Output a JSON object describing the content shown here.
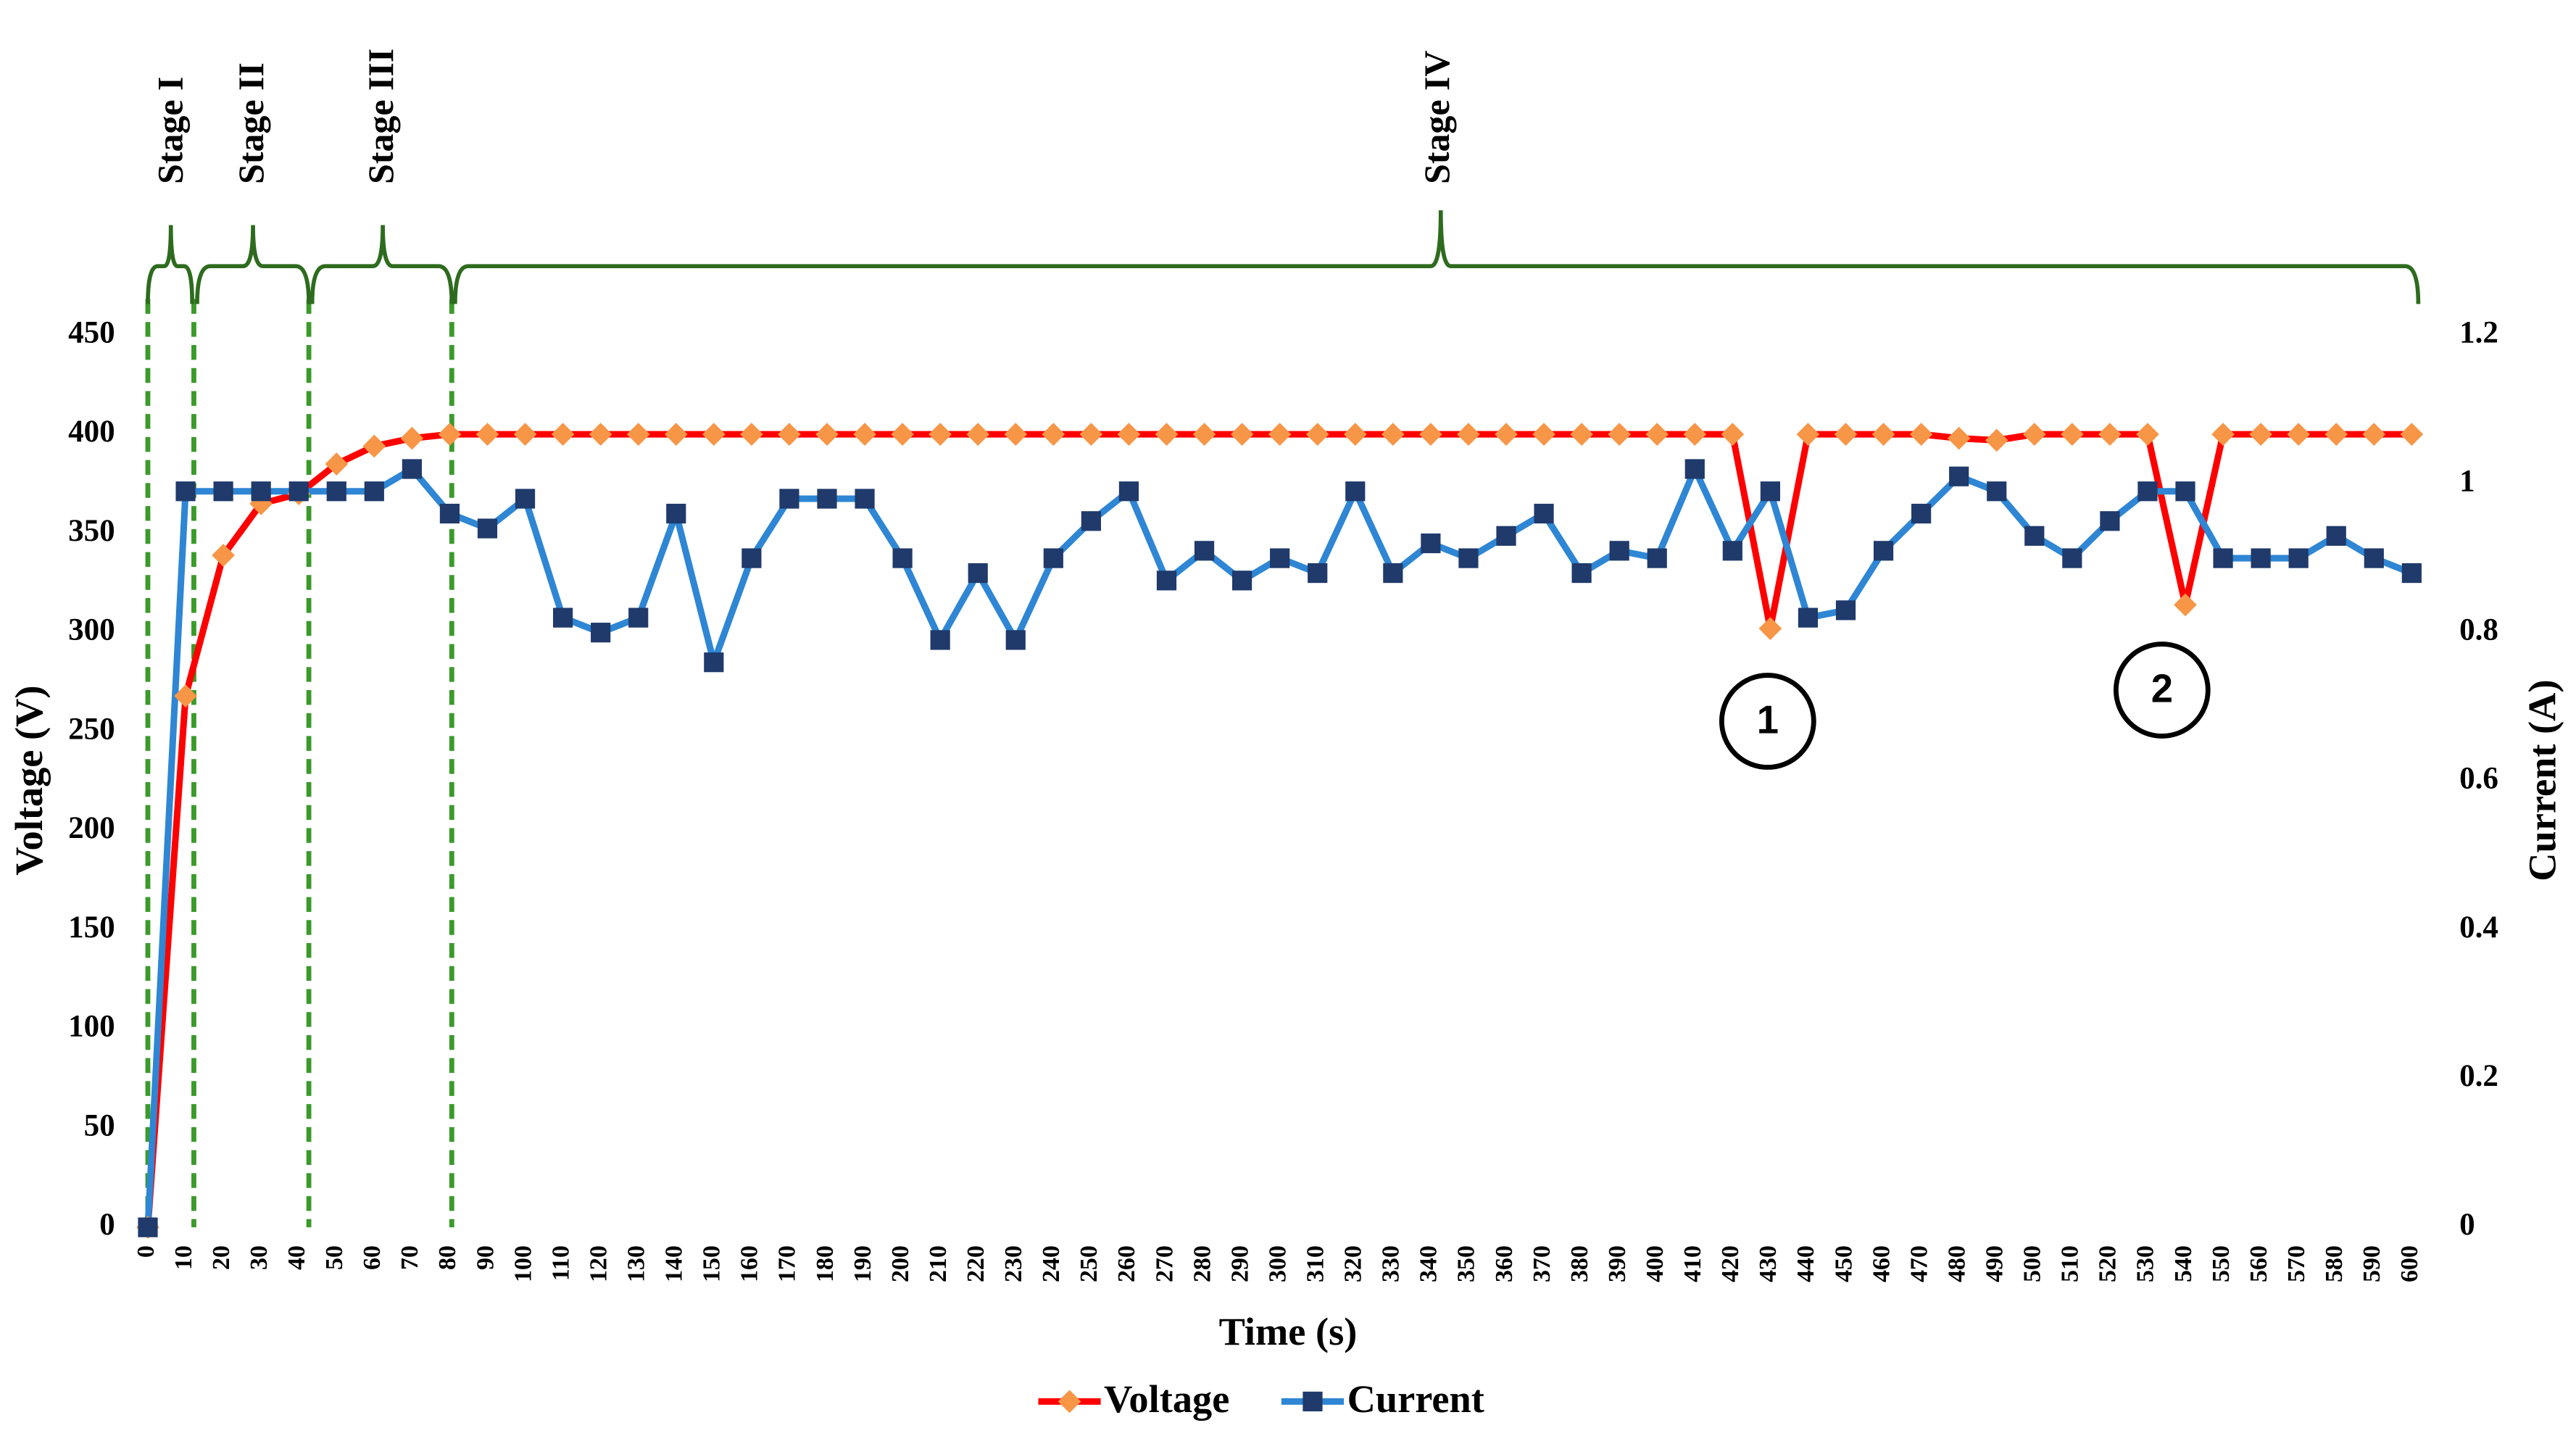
{
  "chart_data": {
    "type": "line",
    "xlabel": "Time (s)",
    "ylabel": "Voltage (V)",
    "y2label": "Current  (A)",
    "x": [
      0,
      10,
      20,
      30,
      40,
      50,
      60,
      70,
      80,
      90,
      100,
      110,
      120,
      130,
      140,
      150,
      160,
      170,
      180,
      190,
      200,
      210,
      220,
      230,
      240,
      250,
      260,
      270,
      280,
      290,
      300,
      310,
      320,
      330,
      340,
      350,
      360,
      370,
      380,
      390,
      400,
      410,
      420,
      430,
      440,
      450,
      460,
      470,
      480,
      490,
      500,
      510,
      520,
      530,
      540,
      550,
      560,
      570,
      580,
      590,
      600
    ],
    "series": [
      {
        "name": "Voltage",
        "color": "#ff0000",
        "marker_color": "#f79646",
        "marker": "diamond",
        "values": [
          0,
          268,
          339,
          365,
          370,
          385,
          394,
          398,
          400,
          400,
          400,
          400,
          400,
          400,
          400,
          400,
          400,
          400,
          400,
          400,
          400,
          400,
          400,
          400,
          400,
          400,
          400,
          400,
          400,
          400,
          400,
          400,
          400,
          400,
          400,
          400,
          400,
          400,
          400,
          400,
          400,
          400,
          400,
          302,
          400,
          400,
          400,
          400,
          398,
          397,
          400,
          400,
          400,
          400,
          314,
          400,
          400,
          400,
          400,
          400,
          400
        ]
      },
      {
        "name": "Current",
        "color": "#2e86d4",
        "marker_color": "#1f3a6b",
        "marker": "square",
        "axis": "y2",
        "values": [
          0,
          0.99,
          0.99,
          0.99,
          0.99,
          0.99,
          0.99,
          1.02,
          0.96,
          0.94,
          0.98,
          0.82,
          0.8,
          0.82,
          0.96,
          0.76,
          0.9,
          0.98,
          0.98,
          0.98,
          0.9,
          0.79,
          0.88,
          0.79,
          0.9,
          0.95,
          0.99,
          0.87,
          0.91,
          0.87,
          0.9,
          0.88,
          0.99,
          0.88,
          0.92,
          0.9,
          0.93,
          0.96,
          0.88,
          0.91,
          0.9,
          1.02,
          0.91,
          0.99,
          0.82,
          0.83,
          0.91,
          0.96,
          1.01,
          0.99,
          0.93,
          0.9,
          0.95,
          0.99,
          0.99,
          0.9,
          0.9,
          0.9,
          0.93,
          0.9,
          0.88
        ]
      }
    ],
    "xlim": [
      0,
      600
    ],
    "xticks": [
      0,
      10,
      20,
      30,
      40,
      50,
      60,
      70,
      80,
      90,
      100,
      110,
      120,
      130,
      140,
      150,
      160,
      170,
      180,
      190,
      200,
      210,
      220,
      230,
      240,
      250,
      260,
      270,
      280,
      290,
      300,
      310,
      320,
      330,
      340,
      350,
      360,
      370,
      380,
      390,
      400,
      410,
      420,
      430,
      440,
      450,
      460,
      470,
      480,
      490,
      500,
      510,
      520,
      530,
      540,
      550,
      560,
      570,
      580,
      590,
      600
    ],
    "ylim": [
      0,
      450
    ],
    "yticks": [
      0,
      50,
      100,
      150,
      200,
      250,
      300,
      350,
      400,
      450
    ],
    "y2lim": [
      0,
      1.2
    ],
    "y2ticks": [
      0,
      0.2,
      0.4,
      0.6,
      0.8,
      1,
      1.2
    ],
    "grid": false,
    "legend": "bottom",
    "annotations": [
      "Stage I",
      "Stage II",
      "Stage III",
      "Stage IV",
      "1",
      "2"
    ]
  }
}
